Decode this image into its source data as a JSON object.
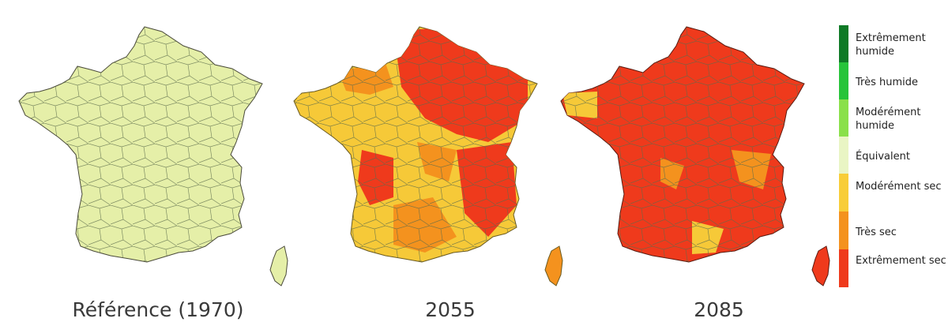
{
  "maps": [
    {
      "caption": "Référence (1970)",
      "base_color": "#e5efa8"
    },
    {
      "caption": "2055",
      "base_color": "#f6c938"
    },
    {
      "caption": "2085",
      "base_color": "#ef3a1c"
    }
  ],
  "legend": {
    "items": [
      {
        "label": "Extrêmement humide",
        "color": "#0f7a26"
      },
      {
        "label": "Très humide",
        "color": "#27c43a"
      },
      {
        "label": "Modérément humide",
        "color": "#8ae04a"
      },
      {
        "label": "Équivalent",
        "color": "#e9f5c4"
      },
      {
        "label": "Modérément sec",
        "color": "#f8cd38"
      },
      {
        "label": "Très sec",
        "color": "#f4921e"
      },
      {
        "label": "Extrêmement sec",
        "color": "#ef3a1c"
      }
    ]
  }
}
